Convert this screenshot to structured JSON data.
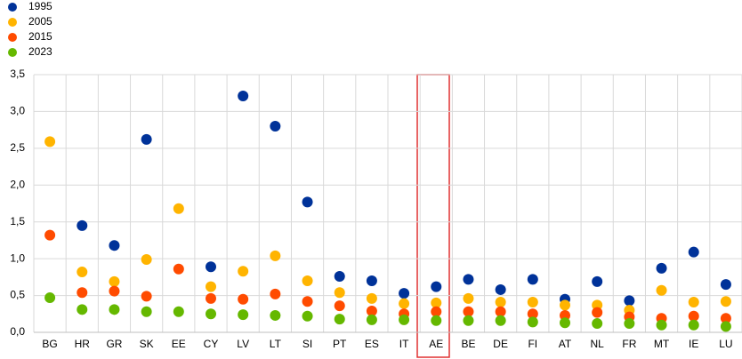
{
  "chart_data": {
    "type": "dot",
    "categories": [
      "BG",
      "HR",
      "GR",
      "SK",
      "EE",
      "CY",
      "LV",
      "LT",
      "SI",
      "PT",
      "ES",
      "IT",
      "AE",
      "BE",
      "DE",
      "FI",
      "AT",
      "NL",
      "FR",
      "MT",
      "IE",
      "LU"
    ],
    "series": [
      {
        "name": "1995",
        "color": "#003299",
        "values": [
          null,
          1.45,
          1.18,
          2.62,
          null,
          0.89,
          3.21,
          2.8,
          1.77,
          0.76,
          0.7,
          0.53,
          0.62,
          0.72,
          0.58,
          0.72,
          0.45,
          0.69,
          0.43,
          0.87,
          1.09,
          0.65
        ]
      },
      {
        "name": "2005",
        "color": "#ffb400",
        "values": [
          2.59,
          0.82,
          0.69,
          0.99,
          1.68,
          0.62,
          0.83,
          1.04,
          0.7,
          0.54,
          0.46,
          0.39,
          0.4,
          0.46,
          0.41,
          0.41,
          0.37,
          0.37,
          0.3,
          0.57,
          0.41,
          0.42
        ]
      },
      {
        "name": "2015",
        "color": "#ff4b00",
        "values": [
          1.32,
          0.54,
          0.56,
          0.49,
          0.86,
          0.46,
          0.45,
          0.52,
          0.42,
          0.36,
          0.29,
          0.25,
          0.28,
          0.28,
          0.28,
          0.25,
          0.23,
          0.27,
          0.21,
          0.19,
          0.22,
          0.19
        ]
      },
      {
        "name": "2023",
        "color": "#65b800",
        "values": [
          0.47,
          0.31,
          0.31,
          0.28,
          0.28,
          0.25,
          0.24,
          0.23,
          0.22,
          0.18,
          0.17,
          0.17,
          0.16,
          0.16,
          0.16,
          0.14,
          0.13,
          0.12,
          0.12,
          0.1,
          0.1,
          0.08
        ]
      }
    ],
    "ylim": [
      0,
      3.5
    ],
    "yticks": [
      {
        "value": 0,
        "label": "0,0"
      },
      {
        "value": 0.5,
        "label": "0,5"
      },
      {
        "value": 1,
        "label": "1,0"
      },
      {
        "value": 1.5,
        "label": "1,5"
      },
      {
        "value": 2,
        "label": "2,0"
      },
      {
        "value": 2.5,
        "label": "2,5"
      },
      {
        "value": 3,
        "label": "3,0"
      },
      {
        "value": 3.5,
        "label": "3,5"
      }
    ],
    "grid": true
  }
}
